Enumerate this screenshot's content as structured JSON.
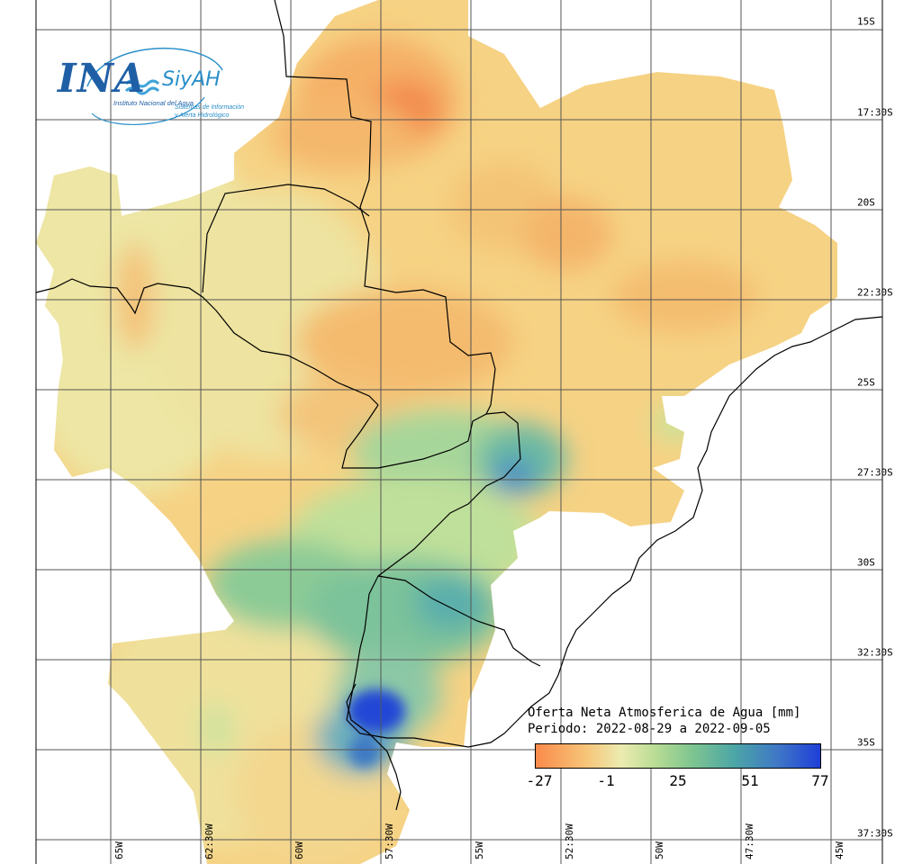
{
  "logo": {
    "ina": "INA",
    "siyah": "SiyAH",
    "institution": "Instituto Nacional del Agua",
    "system_line1": "Sistemas de Información",
    "system_line2": "y Alerta Hidrológico"
  },
  "legend": {
    "title": "Oferta Neta Atmosferica de Agua [mm]",
    "period": "Periodo: 2022-08-29 a 2022-09-05",
    "tick_labels": [
      "-27",
      "-1",
      "25",
      "51",
      "77"
    ],
    "tick_values": [
      -27,
      -1,
      25,
      51,
      77
    ],
    "colors": [
      "#fb8a4a",
      "#f6c67a",
      "#ecebb0",
      "#b9dc94",
      "#7ec590",
      "#4ca5a6",
      "#3f78c6",
      "#1f3fd8"
    ]
  },
  "axes": {
    "lat_labels": [
      "15S",
      "17:30S",
      "20S",
      "22:30S",
      "25S",
      "27:30S",
      "30S",
      "32:30S",
      "35S",
      "37:30S"
    ],
    "lon_labels": [
      "65W",
      "62:30W",
      "60W",
      "57:30W",
      "55W",
      "52:30W",
      "50W",
      "47:30W",
      "45W"
    ]
  }
}
